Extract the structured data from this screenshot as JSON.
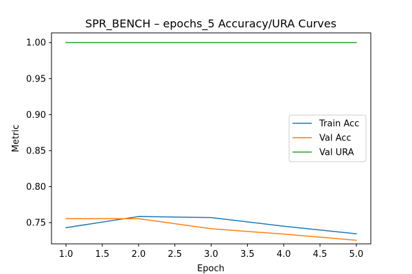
{
  "chart_data": {
    "type": "line",
    "title": "SPR_BENCH – epochs_5 Accuracy/URA Curves",
    "xlabel": "Epoch",
    "ylabel": "Metric",
    "x": [
      1,
      2,
      3,
      4,
      5
    ],
    "xlim": [
      0.8,
      5.2
    ],
    "ylim": [
      0.7205,
      1.0135
    ],
    "xticks": [
      "1.0",
      "1.5",
      "2.0",
      "2.5",
      "3.0",
      "3.5",
      "4.0",
      "4.5",
      "5.0"
    ],
    "yticks": [
      "0.75",
      "0.80",
      "0.85",
      "0.90",
      "0.95",
      "1.00"
    ],
    "grid": false,
    "legend_position": "center-right",
    "series": [
      {
        "name": "Train Acc",
        "color": "#1f77b4",
        "values": [
          0.743,
          0.7585,
          0.757,
          0.745,
          0.7345
        ]
      },
      {
        "name": "Val Acc",
        "color": "#ff7f0e",
        "values": [
          0.7555,
          0.7555,
          0.7415,
          0.734,
          0.7255
        ]
      },
      {
        "name": "Val URA",
        "color": "#2ca02c",
        "values": [
          1.0,
          1.0,
          1.0,
          1.0,
          1.0
        ]
      }
    ]
  }
}
